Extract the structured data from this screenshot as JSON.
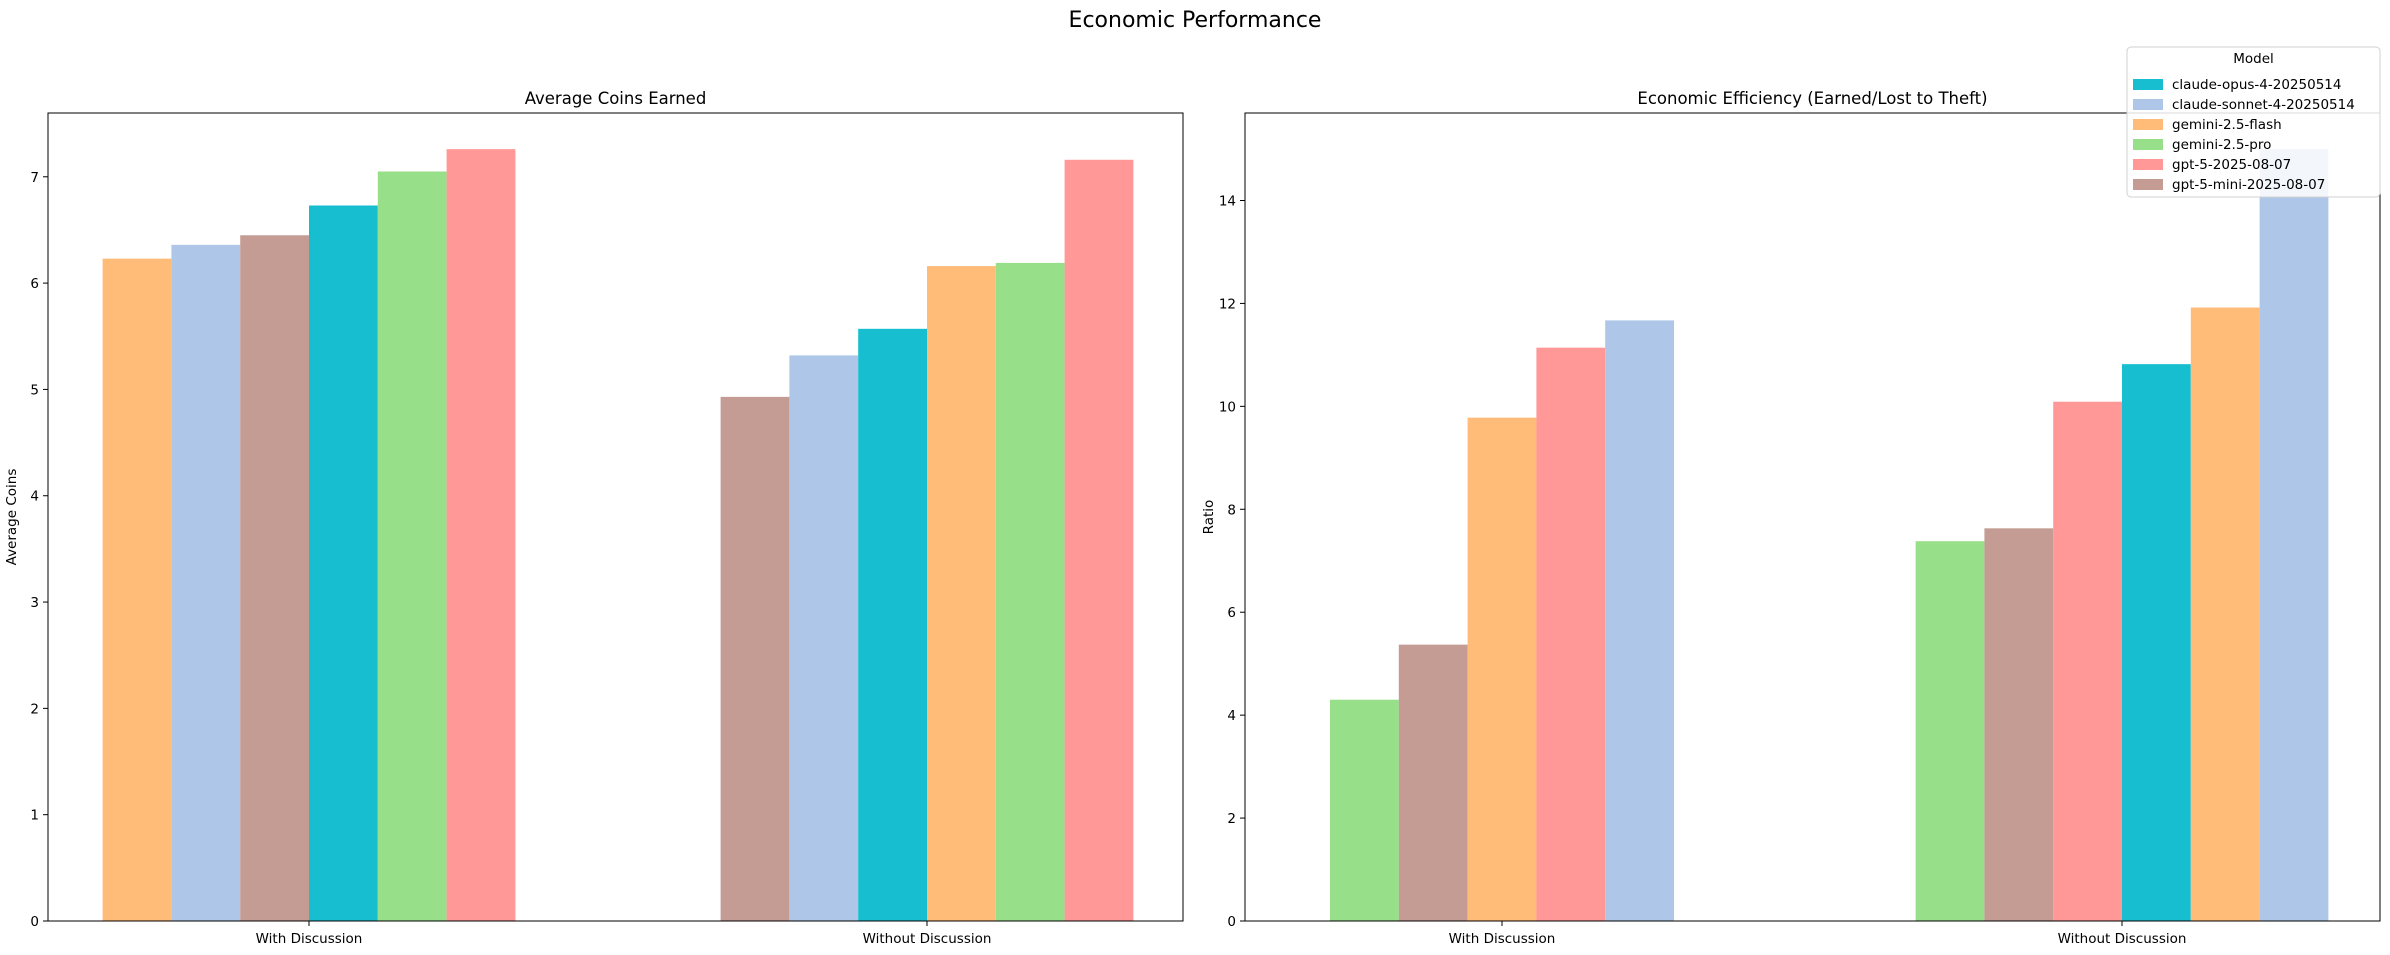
{
  "figure": {
    "title": "Economic Performance"
  },
  "legend": {
    "title": "Model",
    "placement": "top-right",
    "entries": [
      {
        "name": "claude-opus-4-20250514",
        "color": "#17becf"
      },
      {
        "name": "claude-sonnet-4-20250514",
        "color": "#aec7e8"
      },
      {
        "name": "gemini-2.5-flash",
        "color": "#ffbb78"
      },
      {
        "name": "gemini-2.5-pro",
        "color": "#98df8a"
      },
      {
        "name": "gpt-5-2025-08-07",
        "color": "#ff9896"
      },
      {
        "name": "gpt-5-mini-2025-08-07",
        "color": "#c49c94"
      }
    ]
  },
  "chart_data": [
    {
      "type": "bar",
      "title": "Average Coins Earned",
      "xlabel": "",
      "ylabel": "Average Coins",
      "ylim": [
        0,
        7.6
      ],
      "yticks": [
        0,
        1,
        2,
        3,
        4,
        5,
        6,
        7
      ],
      "grid": false,
      "categories": [
        "With Discussion",
        "Without Discussion"
      ],
      "groups": [
        {
          "category": "With Discussion",
          "bars": [
            {
              "model": "gemini-2.5-flash",
              "value": 6.23
            },
            {
              "model": "claude-sonnet-4-20250514",
              "value": 6.36
            },
            {
              "model": "gpt-5-mini-2025-08-07",
              "value": 6.45
            },
            {
              "model": "claude-opus-4-20250514",
              "value": 6.73
            },
            {
              "model": "gemini-2.5-pro",
              "value": 7.05
            },
            {
              "model": "gpt-5-2025-08-07",
              "value": 7.26
            }
          ]
        },
        {
          "category": "Without Discussion",
          "bars": [
            {
              "model": "gpt-5-mini-2025-08-07",
              "value": 4.93
            },
            {
              "model": "claude-sonnet-4-20250514",
              "value": 5.32
            },
            {
              "model": "claude-opus-4-20250514",
              "value": 5.57
            },
            {
              "model": "gemini-2.5-flash",
              "value": 6.16
            },
            {
              "model": "gemini-2.5-pro",
              "value": 6.19
            },
            {
              "model": "gpt-5-2025-08-07",
              "value": 7.16
            }
          ]
        }
      ]
    },
    {
      "type": "bar",
      "title": "Economic Efficiency (Earned/Lost to Theft)",
      "xlabel": "",
      "ylabel": "Ratio",
      "ylim": [
        0,
        15.7
      ],
      "yticks": [
        0,
        2,
        4,
        6,
        8,
        10,
        12,
        14
      ],
      "grid": false,
      "categories": [
        "With Discussion",
        "Without Discussion"
      ],
      "groups": [
        {
          "category": "With Discussion",
          "bars": [
            {
              "model": "gemini-2.5-pro",
              "value": 4.3
            },
            {
              "model": "gpt-5-mini-2025-08-07",
              "value": 5.37
            },
            {
              "model": "gemini-2.5-flash",
              "value": 9.78
            },
            {
              "model": "gpt-5-2025-08-07",
              "value": 11.14
            },
            {
              "model": "claude-sonnet-4-20250514",
              "value": 11.67
            }
          ]
        },
        {
          "category": "Without Discussion",
          "bars": [
            {
              "model": "gemini-2.5-pro",
              "value": 7.38
            },
            {
              "model": "gpt-5-mini-2025-08-07",
              "value": 7.63
            },
            {
              "model": "gpt-5-2025-08-07",
              "value": 10.09
            },
            {
              "model": "claude-opus-4-20250514",
              "value": 10.82
            },
            {
              "model": "gemini-2.5-flash",
              "value": 11.92
            },
            {
              "model": "claude-sonnet-4-20250514",
              "value": 15.0
            }
          ]
        }
      ]
    }
  ]
}
